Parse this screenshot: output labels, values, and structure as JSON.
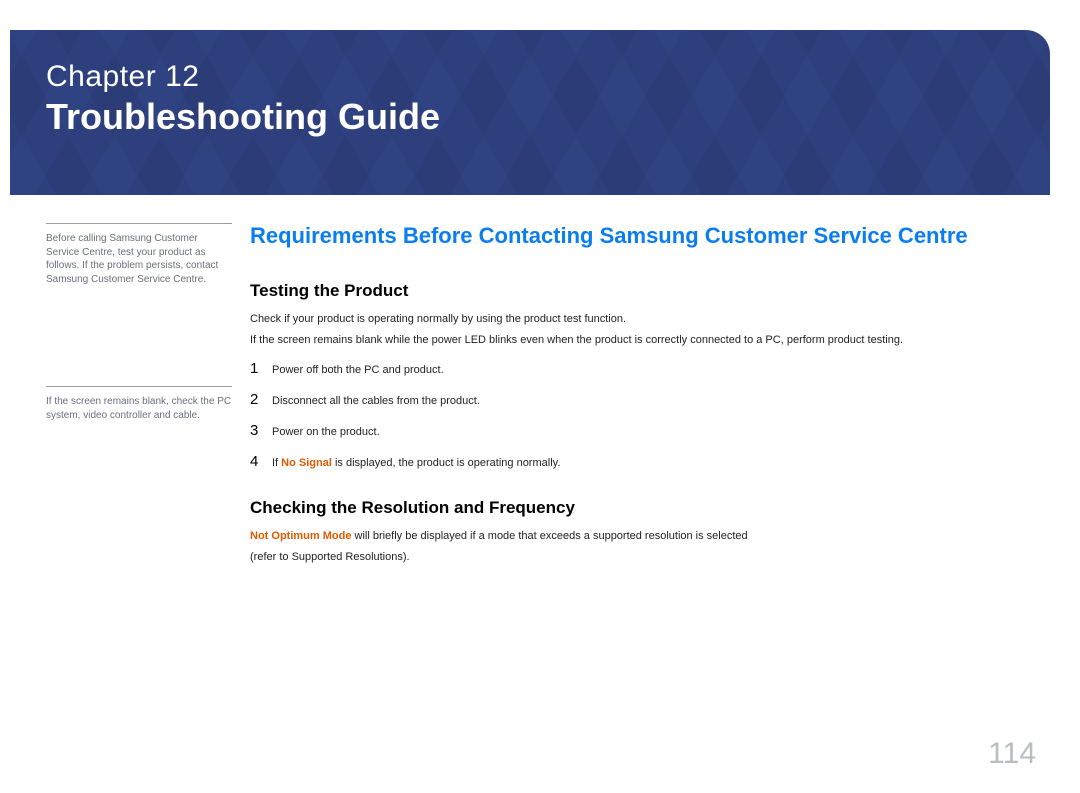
{
  "colors": {
    "banner_bg": "#2d3f7d",
    "title_blue": "#0a7df0",
    "highlight_orange": "#e05a00",
    "sidenote_text": "#6b6f76",
    "sidenote_rule": "#9aa0a6",
    "pagenum_gray": "#b9bcc0",
    "body_text": "#222222",
    "heading_black": "#000000",
    "page_bg": "#ffffff"
  },
  "banner": {
    "chapter_label": "Chapter  12",
    "chapter_title": "Troubleshooting Guide"
  },
  "sidebar": {
    "note1": "Before calling Samsung Customer Service Centre, test your product as follows. If the problem persists, contact Samsung Customer Service Centre.",
    "note2": "If the screen remains blank, check the PC system, video controller and cable."
  },
  "main": {
    "title": "Requirements Before Contacting Samsung Customer Service Centre",
    "section1": {
      "heading": "Testing the Product",
      "p1": "Check if your product is operating normally by using the product test function.",
      "p2": "If the screen remains blank while the power LED blinks even when the product is correctly connected to a PC, perform product testing.",
      "steps": [
        {
          "n": "1",
          "text": "Power off both the PC and product."
        },
        {
          "n": "2",
          "text": "Disconnect all the cables from the product."
        },
        {
          "n": "3",
          "text": "Power on the product."
        },
        {
          "n": "4",
          "prefix": "If ",
          "highlight": "No Signal",
          "suffix": " is displayed, the product is operating normally."
        }
      ]
    },
    "section2": {
      "heading": "Checking the Resolution and Frequency",
      "p1_highlight": "Not Optimum Mode",
      "p1_rest": " will briefly be displayed if a mode that exceeds a supported resolution is selected",
      "p2": "(refer to Supported Resolutions)."
    }
  },
  "page_number": "114"
}
